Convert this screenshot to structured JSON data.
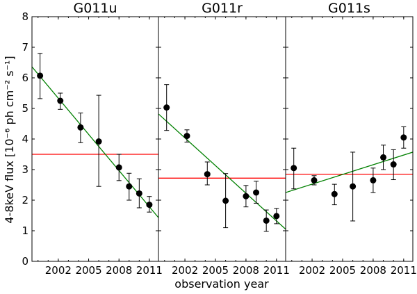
{
  "chart_data": {
    "type": "scatter",
    "xlabel": "observation year",
    "ylabel": "4-8keV flux [10⁻⁶ ph cm⁻² s⁻¹]",
    "ylim": [
      0,
      8
    ],
    "yticks": [
      0,
      1,
      2,
      3,
      4,
      5,
      6,
      7,
      8
    ],
    "xlim": [
      1999.4,
      2011.9
    ],
    "xticks": [
      2002,
      2005,
      2008,
      2011
    ],
    "xticks_labels": [
      "2002",
      "2005",
      "2008",
      "2011"
    ],
    "xticks_minor": [
      2000,
      2001,
      2002,
      2003,
      2004,
      2005,
      2006,
      2007,
      2008,
      2009,
      2010,
      2011
    ],
    "grid": false,
    "colors": {
      "points": "#000000",
      "constant_fit": "#ff0000",
      "linear_fit": "#008000"
    },
    "panels": [
      {
        "title": "G011u",
        "points": [
          {
            "x": 2000.2,
            "y": 6.07,
            "yerr_low": 0.75,
            "yerr_high": 0.73
          },
          {
            "x": 2002.2,
            "y": 5.25,
            "yerr_low": 0.28,
            "yerr_high": 0.25
          },
          {
            "x": 2004.2,
            "y": 4.38,
            "yerr_low": 0.5,
            "yerr_high": 0.47
          },
          {
            "x": 2006.0,
            "y": 3.92,
            "yerr_low": 1.47,
            "yerr_high": 1.51
          },
          {
            "x": 2008.0,
            "y": 3.07,
            "yerr_low": 0.43,
            "yerr_high": 0.43
          },
          {
            "x": 2009.0,
            "y": 2.45,
            "yerr_low": 0.45,
            "yerr_high": 0.43
          },
          {
            "x": 2010.0,
            "y": 2.22,
            "yerr_low": 0.47,
            "yerr_high": 0.48
          },
          {
            "x": 2011.0,
            "y": 1.85,
            "yerr_low": 0.24,
            "yerr_high": 0.27
          }
        ],
        "constant_fit": 3.5,
        "linear_fit": {
          "x": [
            1999.4,
            2011.9
          ],
          "y": [
            6.36,
            1.43
          ]
        }
      },
      {
        "title": "G011r",
        "points": [
          {
            "x": 2000.2,
            "y": 5.03,
            "yerr_low": 0.75,
            "yerr_high": 0.75
          },
          {
            "x": 2002.2,
            "y": 4.1,
            "yerr_low": 0.2,
            "yerr_high": 0.2
          },
          {
            "x": 2004.2,
            "y": 2.85,
            "yerr_low": 0.35,
            "yerr_high": 0.4
          },
          {
            "x": 2006.0,
            "y": 1.98,
            "yerr_low": 0.88,
            "yerr_high": 0.89
          },
          {
            "x": 2008.0,
            "y": 2.13,
            "yerr_low": 0.35,
            "yerr_high": 0.35
          },
          {
            "x": 2009.0,
            "y": 2.25,
            "yerr_low": 0.35,
            "yerr_high": 0.37
          },
          {
            "x": 2010.0,
            "y": 1.33,
            "yerr_low": 0.35,
            "yerr_high": 0.35
          },
          {
            "x": 2011.0,
            "y": 1.48,
            "yerr_low": 0.25,
            "yerr_high": 0.25
          }
        ],
        "constant_fit": 2.72,
        "linear_fit": {
          "x": [
            1999.4,
            2011.9
          ],
          "y": [
            4.82,
            1.05
          ]
        }
      },
      {
        "title": "G011s",
        "points": [
          {
            "x": 2000.2,
            "y": 3.05,
            "yerr_low": 0.68,
            "yerr_high": 0.65
          },
          {
            "x": 2002.2,
            "y": 2.65,
            "yerr_low": 0.15,
            "yerr_high": 0.15
          },
          {
            "x": 2004.2,
            "y": 2.2,
            "yerr_low": 0.35,
            "yerr_high": 0.32
          },
          {
            "x": 2006.0,
            "y": 2.45,
            "yerr_low": 1.13,
            "yerr_high": 1.12
          },
          {
            "x": 2008.0,
            "y": 2.65,
            "yerr_low": 0.4,
            "yerr_high": 0.4
          },
          {
            "x": 2009.0,
            "y": 3.4,
            "yerr_low": 0.4,
            "yerr_high": 0.4
          },
          {
            "x": 2010.0,
            "y": 3.17,
            "yerr_low": 0.5,
            "yerr_high": 0.48
          },
          {
            "x": 2011.0,
            "y": 4.05,
            "yerr_low": 0.35,
            "yerr_high": 0.35
          }
        ],
        "constant_fit": 2.85,
        "linear_fit": {
          "x": [
            1999.4,
            2011.9
          ],
          "y": [
            2.25,
            3.57
          ]
        }
      }
    ]
  }
}
